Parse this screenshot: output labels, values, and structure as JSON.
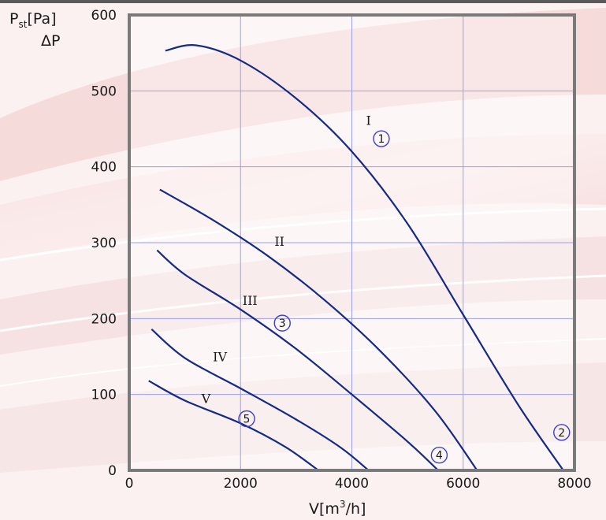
{
  "chart_data": {
    "type": "line",
    "xlabel": {
      "base": "V[m",
      "sup": "3",
      "rest": "/h]"
    },
    "ylabel": {
      "main": "P",
      "sub": "st",
      "rest": "[Pa]",
      "line2": "ΔP"
    },
    "xlim": [
      0,
      8000
    ],
    "ylim": [
      0,
      600
    ],
    "x_ticks": [
      0,
      2000,
      4000,
      6000,
      8000
    ],
    "y_ticks": [
      0,
      100,
      200,
      300,
      400,
      500,
      600
    ],
    "grid": true,
    "series": [
      {
        "name": "I",
        "marker": "1",
        "points": [
          [
            650,
            553
          ],
          [
            1200,
            560
          ],
          [
            2000,
            540
          ],
          [
            3000,
            490
          ],
          [
            4000,
            420
          ],
          [
            5000,
            325
          ],
          [
            6000,
            205
          ],
          [
            7000,
            85
          ],
          [
            7800,
            0
          ]
        ]
      },
      {
        "name": "II",
        "points": [
          [
            550,
            370
          ],
          [
            1500,
            330
          ],
          [
            2500,
            282
          ],
          [
            3500,
            225
          ],
          [
            4500,
            158
          ],
          [
            5500,
            78
          ],
          [
            6250,
            0
          ]
        ]
      },
      {
        "name": "III",
        "points": [
          [
            500,
            290
          ],
          [
            1000,
            258
          ],
          [
            2000,
            212
          ],
          [
            3000,
            160
          ],
          [
            4000,
            100
          ],
          [
            5000,
            38
          ],
          [
            5550,
            0
          ]
        ]
      },
      {
        "name": "IV",
        "points": [
          [
            400,
            186
          ],
          [
            1000,
            148
          ],
          [
            2000,
            108
          ],
          [
            3000,
            67
          ],
          [
            3800,
            30
          ],
          [
            4300,
            0
          ]
        ]
      },
      {
        "name": "V",
        "points": [
          [
            350,
            118
          ],
          [
            1000,
            92
          ],
          [
            2000,
            62
          ],
          [
            2800,
            31
          ],
          [
            3400,
            0
          ]
        ]
      }
    ],
    "extra_markers": [
      "2",
      "3",
      "4",
      "5"
    ]
  }
}
